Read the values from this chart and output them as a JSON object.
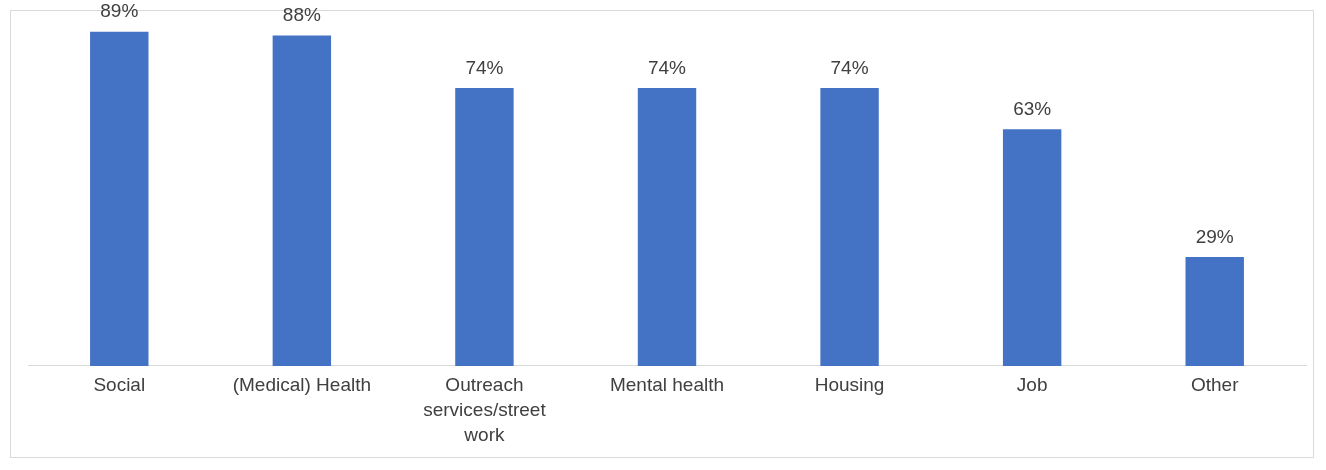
{
  "chart_data": {
    "type": "bar",
    "categories": [
      "Social",
      "(Medical) Health",
      "Outreach services/street work",
      "Mental health",
      "Housing",
      "Job",
      "Other"
    ],
    "values": [
      89,
      88,
      74,
      74,
      74,
      63,
      29
    ],
    "value_labels": [
      "89%",
      "88%",
      "74%",
      "74%",
      "74%",
      "63%",
      "29%"
    ],
    "color": "#4472c4",
    "tick_labels": "x"
  }
}
